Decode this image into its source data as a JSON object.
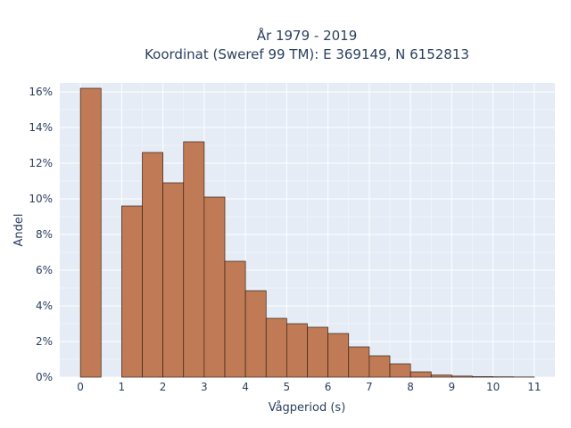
{
  "chart_data": {
    "type": "bar",
    "title": "År 1979 - 2019",
    "subtitle": "Koordinat (Sweref 99 TM): E 369149, N 6152813",
    "xlabel": "Vågperiod (s)",
    "ylabel": "Andel",
    "xlim": [
      -0.5,
      11.5
    ],
    "ylim": [
      0,
      16.5
    ],
    "x_ticks": [
      0,
      1,
      2,
      3,
      4,
      5,
      6,
      7,
      8,
      9,
      10,
      11
    ],
    "y_ticks": [
      0,
      2,
      4,
      6,
      8,
      10,
      12,
      14,
      16
    ],
    "y_tick_suffix": "%",
    "bin_width": 0.5,
    "bins": [
      {
        "x0": 0.0,
        "value": 16.2
      },
      {
        "x0": 0.5,
        "value": 0.0
      },
      {
        "x0": 1.0,
        "value": 9.6
      },
      {
        "x0": 1.5,
        "value": 12.6
      },
      {
        "x0": 2.0,
        "value": 10.9
      },
      {
        "x0": 2.5,
        "value": 13.2
      },
      {
        "x0": 3.0,
        "value": 10.1
      },
      {
        "x0": 3.5,
        "value": 6.5
      },
      {
        "x0": 4.0,
        "value": 4.85
      },
      {
        "x0": 4.5,
        "value": 3.3
      },
      {
        "x0": 5.0,
        "value": 3.0
      },
      {
        "x0": 5.5,
        "value": 2.8
      },
      {
        "x0": 6.0,
        "value": 2.45
      },
      {
        "x0": 6.5,
        "value": 1.7
      },
      {
        "x0": 7.0,
        "value": 1.2
      },
      {
        "x0": 7.5,
        "value": 0.75
      },
      {
        "x0": 8.0,
        "value": 0.3
      },
      {
        "x0": 8.5,
        "value": 0.12
      },
      {
        "x0": 9.0,
        "value": 0.06
      },
      {
        "x0": 9.5,
        "value": 0.03
      },
      {
        "x0": 10.0,
        "value": 0.02
      },
      {
        "x0": 10.5,
        "value": 0.01
      }
    ],
    "grid": true,
    "colors": {
      "plot_background": "#e5ecf6",
      "bar_fill": "#c07a55",
      "bar_edge": "#3a2418",
      "grid": "#ffffff",
      "text": "#2a3f5f"
    }
  }
}
